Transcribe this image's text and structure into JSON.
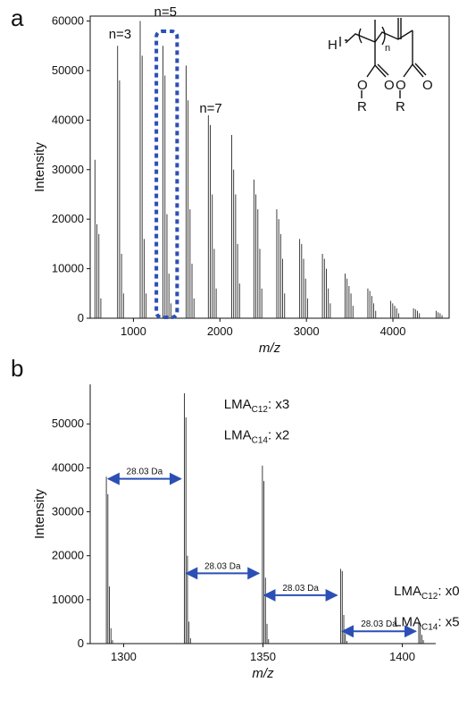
{
  "chart_data": [
    {
      "panel": "a",
      "type": "bar",
      "subtype": "mass-spectrum",
      "xlabel": "m/z",
      "ylabel": "Intensity",
      "xlim": [
        500,
        4650
      ],
      "ylim": [
        0,
        61000
      ],
      "xticks": [
        1000,
        2000,
        3000,
        4000
      ],
      "yticks": [
        0,
        10000,
        20000,
        30000,
        40000,
        50000,
        60000
      ],
      "clusters": [
        {
          "center": 555,
          "peaks": [
            32000,
            19000,
            17000,
            4000
          ]
        },
        {
          "center": 817,
          "peaks": [
            55000,
            48000,
            13000,
            5000
          ]
        },
        {
          "center": 1078,
          "peaks": [
            60000,
            53000,
            16000,
            5000
          ]
        },
        {
          "center": 1342,
          "peaks": [
            55000,
            49000,
            21000,
            9000,
            3000
          ]
        },
        {
          "center": 1609,
          "peaks": [
            51000,
            44000,
            22000,
            11000,
            4000
          ]
        },
        {
          "center": 1866,
          "peaks": [
            41000,
            39000,
            25000,
            14000,
            6000
          ]
        },
        {
          "center": 2136,
          "peaks": [
            37000,
            30000,
            25000,
            15000,
            7000
          ]
        },
        {
          "center": 2393,
          "peaks": [
            28000,
            25000,
            22000,
            14000,
            6000
          ]
        },
        {
          "center": 2657,
          "peaks": [
            22000,
            20000,
            17000,
            12000,
            5000
          ]
        },
        {
          "center": 2922,
          "peaks": [
            16000,
            15000,
            12000,
            8000,
            4000
          ]
        },
        {
          "center": 3185,
          "peaks": [
            13000,
            12000,
            10000,
            6000,
            3000
          ]
        },
        {
          "center": 3447,
          "peaks": [
            9000,
            8000,
            6500,
            5000,
            2500
          ]
        },
        {
          "center": 3710,
          "peaks": [
            6000,
            5500,
            4500,
            3000,
            1500
          ]
        },
        {
          "center": 3975,
          "peaks": [
            3500,
            3000,
            2500,
            2000,
            1000
          ]
        },
        {
          "center": 4238,
          "peaks": [
            2000,
            1800,
            1500,
            1000
          ]
        },
        {
          "center": 4500,
          "peaks": [
            1500,
            1200,
            1000,
            600
          ]
        }
      ],
      "annotations": [
        {
          "text": "n=3",
          "x": 817,
          "y": 56500
        },
        {
          "text": "n=5",
          "x": 1342,
          "y": 61000
        },
        {
          "text": "n=7",
          "x": 1866,
          "y": 41500
        }
      ],
      "highlight": {
        "x0": 1265,
        "x1": 1505,
        "color": "#2b4fb5"
      }
    },
    {
      "panel": "b",
      "type": "bar",
      "subtype": "mass-spectrum",
      "xlabel": "m/z",
      "ylabel": "Intensity",
      "xlim": [
        1288,
        1412
      ],
      "ylim": [
        0,
        59000
      ],
      "xticks": [
        1300,
        1350,
        1400
      ],
      "yticks": [
        0,
        10000,
        20000,
        30000,
        40000,
        50000
      ],
      "clusters": [
        {
          "center": 1293.8,
          "spacing": 0.55,
          "peaks": [
            38000,
            34000,
            13000,
            3500,
            800
          ]
        },
        {
          "center": 1321.8,
          "spacing": 0.55,
          "peaks": [
            57000,
            51500,
            20000,
            5000,
            1200
          ]
        },
        {
          "center": 1349.8,
          "spacing": 0.55,
          "peaks": [
            40500,
            37000,
            15000,
            4500,
            1000
          ]
        },
        {
          "center": 1377.9,
          "spacing": 0.55,
          "peaks": [
            17000,
            16500,
            6500,
            2200,
            600
          ]
        },
        {
          "center": 1405.9,
          "spacing": 0.55,
          "peaks": [
            4700,
            4600,
            2000,
            800
          ]
        }
      ],
      "arrows": [
        {
          "x1": 1294.5,
          "x2": 1320.5,
          "y": 37500,
          "label": "28.03 Da"
        },
        {
          "x1": 1322.5,
          "x2": 1348.5,
          "y": 16000,
          "label": "28.03 Da"
        },
        {
          "x1": 1350.5,
          "x2": 1376.5,
          "y": 11000,
          "label": "28.03 Da"
        },
        {
          "x1": 1378.5,
          "x2": 1404.8,
          "y": 2800,
          "label": "28.03 Da"
        }
      ],
      "labels": [
        {
          "prefix": "LMA",
          "sub": "C12",
          "suffix": ": x3",
          "x": 1336,
          "y": 53500
        },
        {
          "prefix": "LMA",
          "sub": "C14",
          "suffix": ": x2",
          "x": 1336,
          "y": 46500
        },
        {
          "prefix": "LMA",
          "sub": "C12",
          "suffix": ": x0",
          "x": 1397,
          "y": 11000
        },
        {
          "prefix": "LMA",
          "sub": "C14",
          "suffix": ": x5",
          "x": 1397,
          "y": 4000
        }
      ]
    }
  ],
  "panel_labels": {
    "a": "a",
    "b": "b"
  },
  "structure": {
    "left_atom": "H",
    "repeat_index": "n",
    "ester_o": "O",
    "carbonyl_o": "O",
    "r_group": "R"
  },
  "arrow_color": "#2b4fb5"
}
